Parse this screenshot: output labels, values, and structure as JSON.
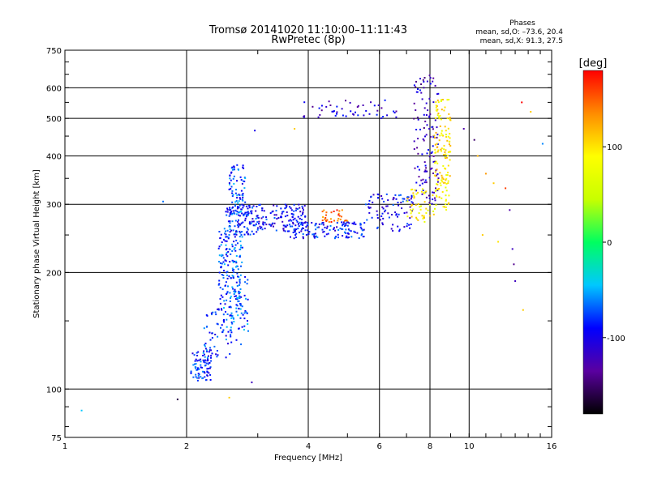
{
  "chart_data": {
    "type": "scatter",
    "title": "Tromsø 20141020 11:10:00–11:11:43",
    "subtitle": "RwPretec (8p)",
    "xlabel": "Frequency [MHz]",
    "ylabel": "Stationary phase Virtual Height [km]",
    "x_scale": "log",
    "y_scale": "log",
    "xlim": [
      1,
      16
    ],
    "ylim": [
      75,
      750
    ],
    "x_ticks": [
      1,
      2,
      4,
      6,
      8,
      10,
      16
    ],
    "y_ticks": [
      75,
      100,
      200,
      300,
      400,
      500,
      600,
      750
    ],
    "grid": true,
    "stats": {
      "heading": "Phases",
      "line_o": "mean, sd,O: –73.6, 20.4",
      "line_x": "mean, sd,X:  91.3, 27.5"
    },
    "colorbar": {
      "label": "[deg]",
      "range": [
        -180,
        180
      ],
      "ticks": [
        100,
        0,
        -100
      ],
      "colors": [
        "#000000",
        "#5a00a0",
        "#0000ff",
        "#00c8ff",
        "#00ff60",
        "#c8ff00",
        "#ffff00",
        "#ff8c00",
        "#ff0000"
      ]
    },
    "series": [
      {
        "segments": [
          {
            "f0": 2.05,
            "f1": 2.3,
            "h0": 105,
            "h1": 125,
            "phase": -85,
            "n": 80
          },
          {
            "f0": 2.2,
            "f1": 2.6,
            "h0": 120,
            "h1": 165,
            "phase": -80,
            "n": 70
          },
          {
            "f0": 2.4,
            "f1": 2.75,
            "h0": 160,
            "h1": 260,
            "phase": -75,
            "n": 160
          },
          {
            "f0": 2.55,
            "f1": 2.85,
            "h0": 130,
            "h1": 200,
            "phase": -70,
            "n": 60
          },
          {
            "f0": 2.55,
            "f1": 2.8,
            "h0": 280,
            "h1": 380,
            "phase": -75,
            "n": 80
          },
          {
            "f0": 2.5,
            "f1": 3.0,
            "h0": 250,
            "h1": 300,
            "phase": -85,
            "n": 120
          },
          {
            "f0": 3.0,
            "f1": 4.0,
            "h0": 255,
            "h1": 300,
            "phase": -95,
            "n": 120
          },
          {
            "f0": 3.6,
            "f1": 5.5,
            "h0": 245,
            "h1": 270,
            "phase": -90,
            "n": 130
          },
          {
            "f0": 5.5,
            "f1": 7.3,
            "h0": 255,
            "h1": 320,
            "phase": -95,
            "n": 90
          },
          {
            "f0": 7.3,
            "f1": 8.4,
            "h0": 300,
            "h1": 650,
            "phase": -115,
            "n": 120
          },
          {
            "f0": 7.0,
            "f1": 8.3,
            "h0": 270,
            "h1": 330,
            "phase": 90,
            "n": 50
          },
          {
            "f0": 8.2,
            "f1": 9.0,
            "h0": 290,
            "h1": 560,
            "phase": 95,
            "n": 140
          },
          {
            "f0": 3.8,
            "f1": 6.8,
            "h0": 500,
            "h1": 560,
            "phase": -110,
            "n": 50
          },
          {
            "f0": 4.3,
            "f1": 5.0,
            "h0": 270,
            "h1": 290,
            "phase": 150,
            "n": 30
          }
        ],
        "points": [
          {
            "x": 1.1,
            "y": 88,
            "phase": -45
          },
          {
            "x": 1.75,
            "y": 305,
            "phase": -65
          },
          {
            "x": 1.9,
            "y": 94,
            "phase": -160
          },
          {
            "x": 2.55,
            "y": 95,
            "phase": 110
          },
          {
            "x": 2.9,
            "y": 104,
            "phase": -120
          },
          {
            "x": 2.95,
            "y": 465,
            "phase": -100
          },
          {
            "x": 3.7,
            "y": 470,
            "phase": 110
          },
          {
            "x": 9.7,
            "y": 470,
            "phase": -130
          },
          {
            "x": 10.3,
            "y": 440,
            "phase": -150
          },
          {
            "x": 10.5,
            "y": 400,
            "phase": 120
          },
          {
            "x": 11.0,
            "y": 360,
            "phase": 130
          },
          {
            "x": 11.5,
            "y": 340,
            "phase": 110
          },
          {
            "x": 12.3,
            "y": 330,
            "phase": 160
          },
          {
            "x": 12.6,
            "y": 290,
            "phase": -130
          },
          {
            "x": 12.8,
            "y": 230,
            "phase": -120
          },
          {
            "x": 12.9,
            "y": 210,
            "phase": -140
          },
          {
            "x": 13.0,
            "y": 190,
            "phase": -120
          },
          {
            "x": 13.5,
            "y": 550,
            "phase": 180
          },
          {
            "x": 13.6,
            "y": 160,
            "phase": 110
          },
          {
            "x": 14.2,
            "y": 520,
            "phase": 110
          },
          {
            "x": 15.2,
            "y": 430,
            "phase": -60
          },
          {
            "x": 10.8,
            "y": 250,
            "phase": 110
          },
          {
            "x": 11.8,
            "y": 240,
            "phase": 100
          }
        ]
      }
    ]
  }
}
